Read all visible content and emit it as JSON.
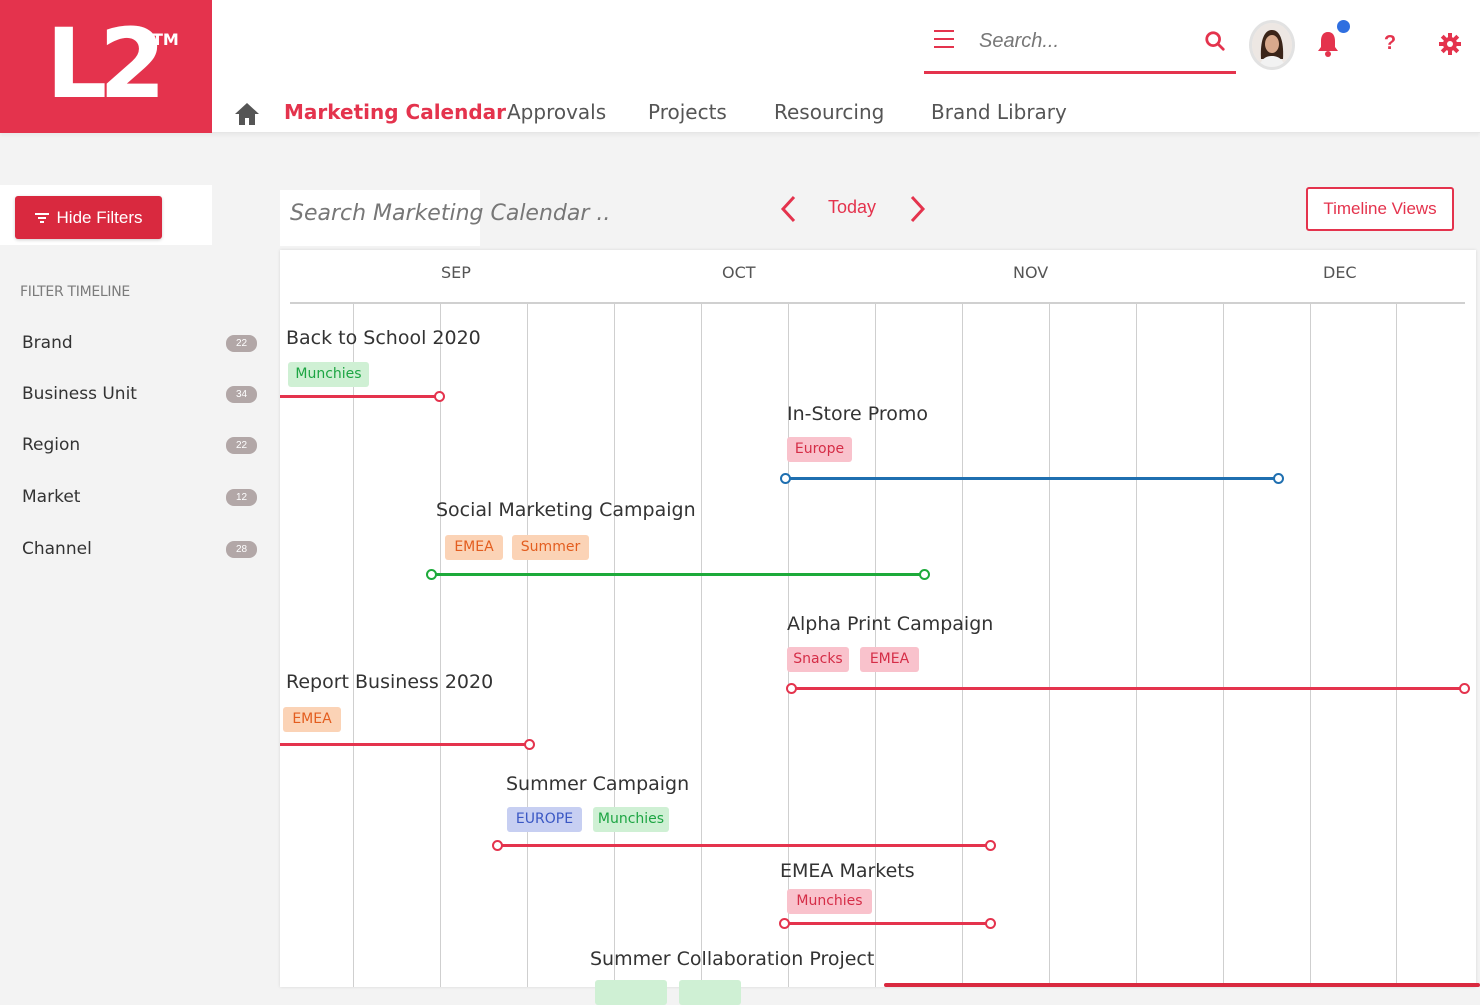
{
  "app": {
    "logo": "L2",
    "logo_tm": "TM",
    "colors": {
      "brand": "#e4334d",
      "blue": "#1f6fb0",
      "green": "#1daa3a"
    }
  },
  "header": {
    "search_placeholder": "Search...",
    "icons": [
      "menu-icon",
      "search-icon",
      "bell-icon",
      "help-icon",
      "gear-icon"
    ],
    "help_glyph": "?",
    "nav": [
      "Marketing Calendar",
      "Approvals",
      "Projects",
      "Resourcing",
      "Brand Library"
    ]
  },
  "toolbar": {
    "hide_filters": "Hide Filters",
    "calendar_search_placeholder": "Search Marketing Calendar ...",
    "today": "Today",
    "timeline_views": "Timeline Views"
  },
  "sidebar": {
    "title": "FILTER TIMELINE",
    "filters": [
      {
        "label": "Brand",
        "count": "22"
      },
      {
        "label": "Business Unit",
        "count": "34"
      },
      {
        "label": "Region",
        "count": "22"
      },
      {
        "label": "Market",
        "count": "12"
      },
      {
        "label": "Channel",
        "count": "28"
      }
    ]
  },
  "timeline": {
    "months": [
      "SEP",
      "OCT",
      "NOV",
      "DEC"
    ],
    "events": [
      {
        "title": "Back to School 2020",
        "tags": [
          "Munchies"
        ]
      },
      {
        "title": "In-Store Promo",
        "tags": [
          "Europe"
        ]
      },
      {
        "title": "Social Marketing Campaign",
        "tags": [
          "EMEA",
          "Summer"
        ]
      },
      {
        "title": "Alpha Print Campaign",
        "tags": [
          "Snacks",
          "EMEA"
        ]
      },
      {
        "title": "Report Business 2020",
        "tags": [
          "EMEA"
        ]
      },
      {
        "title": "Summer Campaign",
        "tags": [
          "EUROPE",
          "Munchies"
        ]
      },
      {
        "title": "EMEA Markets",
        "tags": [
          "Munchies"
        ]
      },
      {
        "title": "Summer Collaboration Project",
        "tags": []
      }
    ]
  }
}
